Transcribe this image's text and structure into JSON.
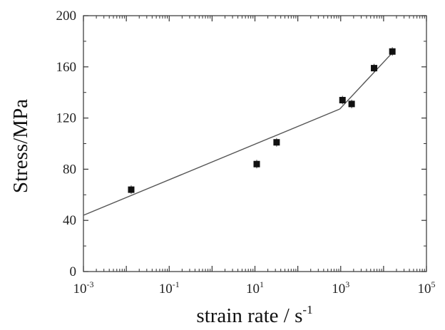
{
  "chart_data": {
    "type": "scatter",
    "title": "",
    "xlabel": "strain rate  / s",
    "xlabel_superscript": "-1",
    "ylabel": "Stress/MPa",
    "xscale": "log",
    "xlim": [
      0.001,
      100000
    ],
    "ylim": [
      0,
      200
    ],
    "x_ticks": [
      {
        "value": 0.001,
        "base": "10",
        "exp": "-3"
      },
      {
        "value": 0.1,
        "base": "10",
        "exp": "-1"
      },
      {
        "value": 10,
        "base": "10",
        "exp": "1"
      },
      {
        "value": 1000,
        "base": "10",
        "exp": "3"
      },
      {
        "value": 100000,
        "base": "10",
        "exp": "5"
      }
    ],
    "y_ticks": [
      0,
      40,
      80,
      120,
      160,
      200
    ],
    "grid": false,
    "series": [
      {
        "marker": "square",
        "x": [
          0.013,
          11,
          32,
          1100,
          1800,
          6000,
          16000
        ],
        "y": [
          64,
          84,
          101,
          134,
          131,
          159,
          172
        ]
      }
    ],
    "fit_lines": [
      {
        "x": [
          0.001,
          950
        ],
        "y": [
          44,
          127
        ]
      },
      {
        "x": [
          950,
          16000
        ],
        "y": [
          127,
          171
        ]
      }
    ]
  }
}
